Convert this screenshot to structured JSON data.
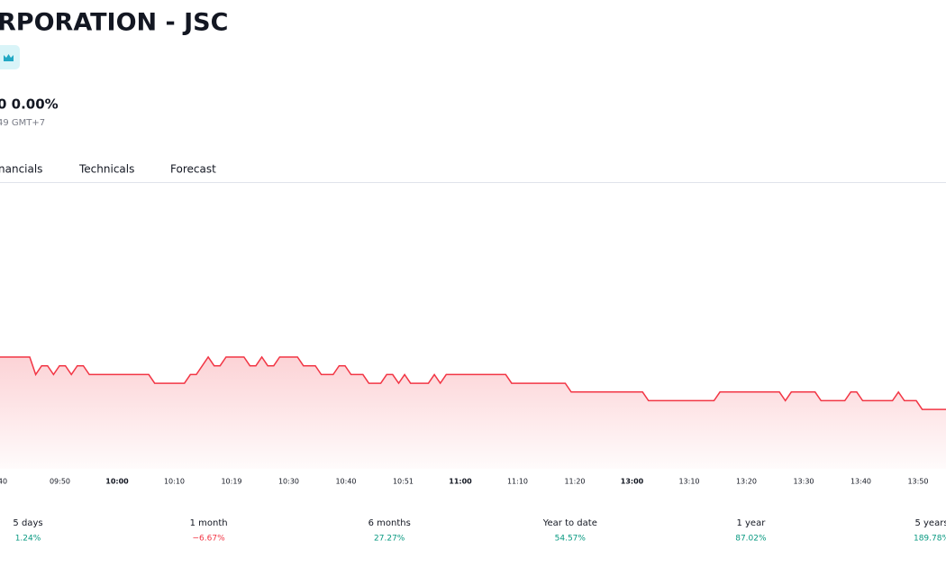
{
  "header": {
    "title": "RPORATION - JSC",
    "price": "0 0.00%",
    "time": "49 GMT+7"
  },
  "tabs": [
    "nancials",
    "Technicals",
    "Forecast"
  ],
  "chart_data": {
    "type": "line",
    "color": "#f23645",
    "x_labels": [
      "40",
      "09:50",
      "10:00",
      "10:10",
      "10:19",
      "10:30",
      "10:40",
      "10:51",
      "11:00",
      "11:10",
      "11:20",
      "13:00",
      "13:10",
      "13:20",
      "13:30",
      "13:40",
      "13:50"
    ],
    "ylim": [
      -6.8,
      25.2
    ],
    "values": [
      6,
      6,
      6,
      6,
      6,
      6,
      4,
      5,
      5,
      4,
      5,
      5,
      4,
      5,
      5,
      4,
      4,
      4,
      4,
      4,
      4,
      4,
      4,
      4,
      4,
      4,
      3,
      3,
      3,
      3,
      3,
      3,
      4,
      4,
      5,
      6,
      5,
      5,
      6,
      6,
      6,
      6,
      5,
      5,
      6,
      5,
      5,
      6,
      6,
      6,
      6,
      5,
      5,
      5,
      4,
      4,
      4,
      5,
      5,
      4,
      4,
      4,
      3,
      3,
      3,
      4,
      4,
      3,
      4,
      3,
      3,
      3,
      3,
      4,
      3,
      4,
      4,
      4,
      4,
      4,
      4,
      4,
      4,
      4,
      4,
      4,
      3,
      3,
      3,
      3,
      3,
      3,
      3,
      3,
      3,
      3,
      2,
      2,
      2,
      2,
      2,
      2,
      2,
      2,
      2,
      2,
      2,
      2,
      2,
      1,
      1,
      1,
      1,
      1,
      1,
      1,
      1,
      1,
      1,
      1,
      1,
      2,
      2,
      2,
      2,
      2,
      2,
      2,
      2,
      2,
      2,
      2,
      1,
      2,
      2,
      2,
      2,
      2,
      1,
      1,
      1,
      1,
      1,
      2,
      2,
      1,
      1,
      1,
      1,
      1,
      1,
      2,
      1,
      1,
      1,
      0,
      0,
      0,
      0,
      0
    ]
  },
  "performance": [
    {
      "period": "5 days",
      "change": "1.24%",
      "color": "#089981"
    },
    {
      "period": "1 month",
      "change": "−6.67%",
      "color": "#f23645"
    },
    {
      "period": "6 months",
      "change": "27.27%",
      "color": "#089981"
    },
    {
      "period": "Year to date",
      "change": "54.57%",
      "color": "#089981"
    },
    {
      "period": "1 year",
      "change": "87.02%",
      "color": "#089981"
    },
    {
      "period": "5 years",
      "change": "189.78%",
      "color": "#089981"
    }
  ]
}
